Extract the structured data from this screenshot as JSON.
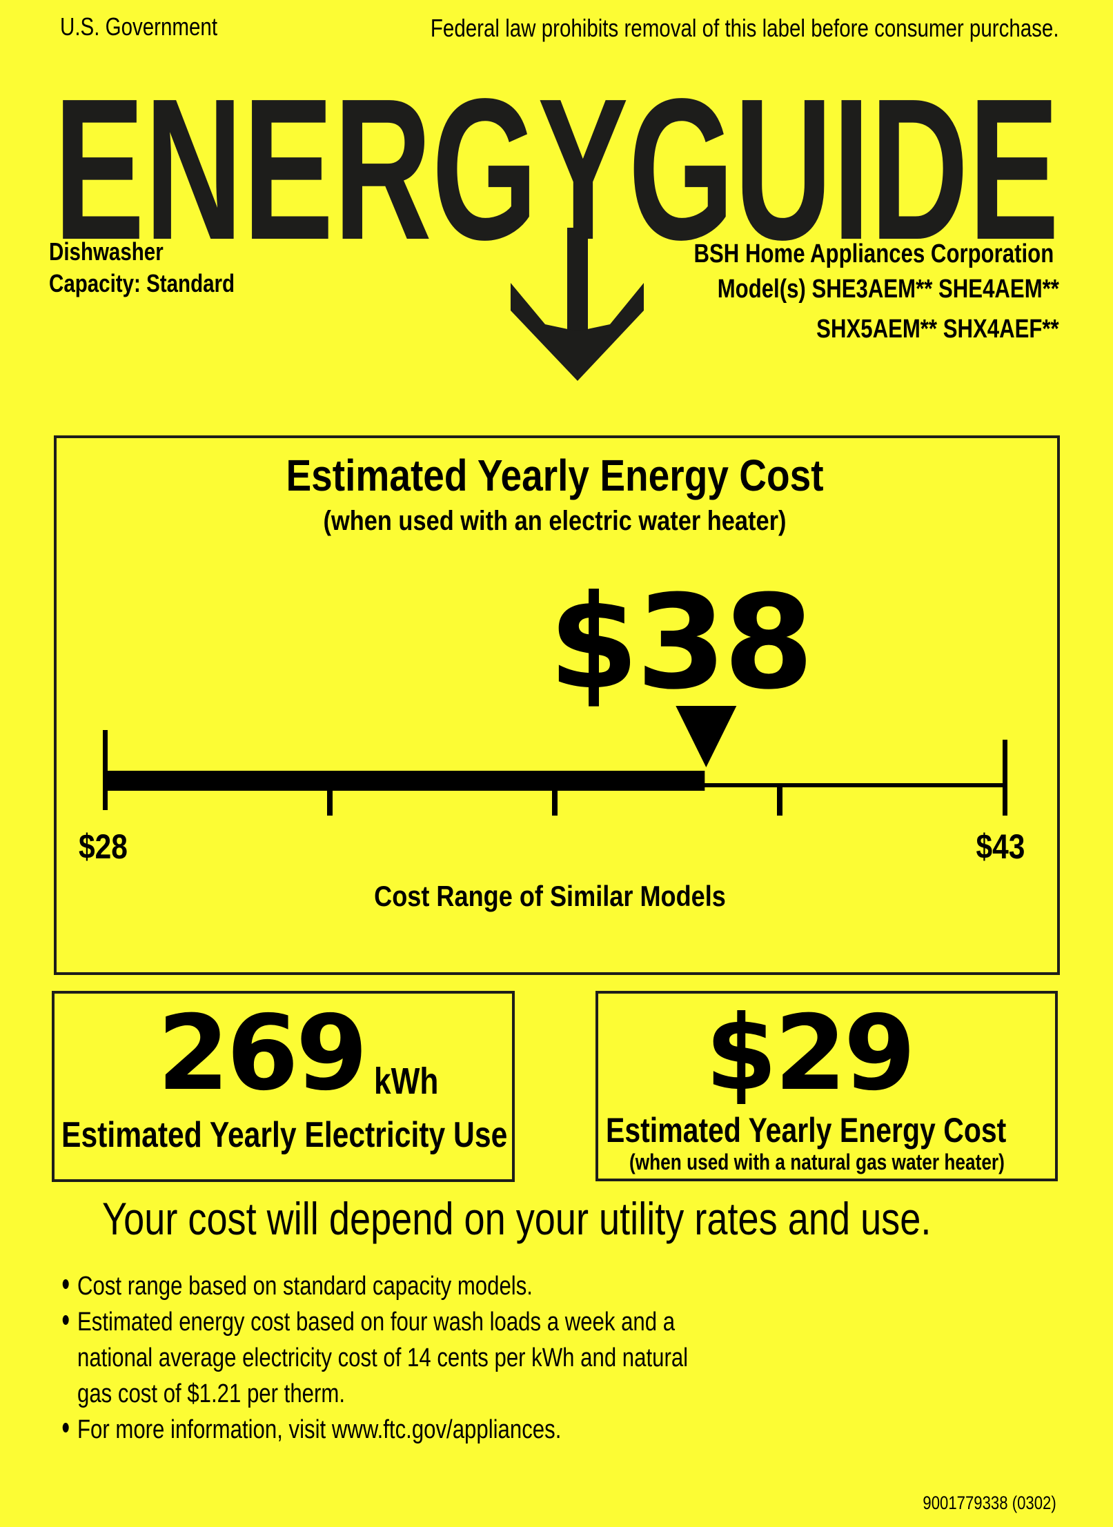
{
  "header": {
    "issuer": "U.S. Government",
    "notice": "Federal law prohibits removal of this label before consumer purchase.",
    "logo_text": "ENERGYGUIDE"
  },
  "product": {
    "type": "Dishwasher",
    "capacity_label": "Capacity:",
    "capacity_value": "Standard",
    "manufacturer": "BSH Home Appliances Corporation",
    "models_line1": "Model(s) SHE3AEM** SHE4AEM**",
    "models_line2": "SHX5AEM** SHX4AEF**"
  },
  "main_cost": {
    "title": "Estimated Yearly Energy Cost",
    "subtitle": "(when used with an electric water heater)",
    "value_label": "$38",
    "value": 38,
    "range_min": 28,
    "range_max": 43,
    "range_min_label": "$28",
    "range_max_label": "$43",
    "range_caption": "Cost Range of Similar Models"
  },
  "electricity": {
    "value": "269",
    "unit": "kWh",
    "label": "Estimated Yearly Electricity Use"
  },
  "gas_cost": {
    "value": "$29",
    "label": "Estimated Yearly Energy Cost",
    "subtitle": "(when used with a natural gas water heater)"
  },
  "disclaimer": "Your cost will depend on your utility rates and use.",
  "bullets": [
    "Cost range based on standard capacity models.",
    "Estimated energy cost based on four wash loads a week and a",
    "national average electricity cost of 14 cents per kWh and natural",
    "gas cost of $1.21 per therm.",
    "For more information, visit www.ftc.gov/appliances."
  ],
  "footer_code": "9001779338 (0302)",
  "colors": {
    "background": "#fcfc34",
    "ink": "#1d1d1b"
  }
}
